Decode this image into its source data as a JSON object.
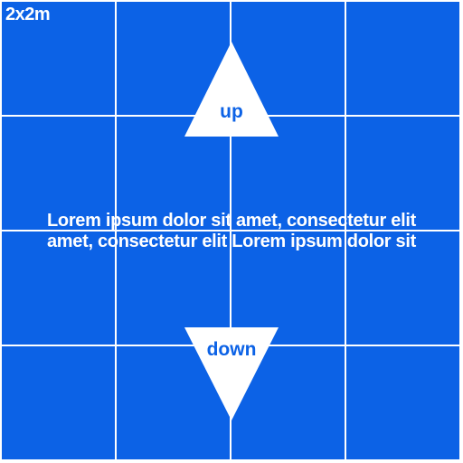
{
  "badge": {
    "label": "2x2m"
  },
  "controls": {
    "up": {
      "label": "up",
      "icon": "triangle-up-icon"
    },
    "down": {
      "label": "down",
      "icon": "triangle-down-icon"
    }
  },
  "content": {
    "line1": "Lorem ipsum dolor sit amet, consectetur elit",
    "line2": "amet, consectetur elit Lorem ipsum dolor sit"
  },
  "colors": {
    "tile_blue": "#0c62e6",
    "background": "#ffffff",
    "arrow_fill": "#ffffff"
  }
}
